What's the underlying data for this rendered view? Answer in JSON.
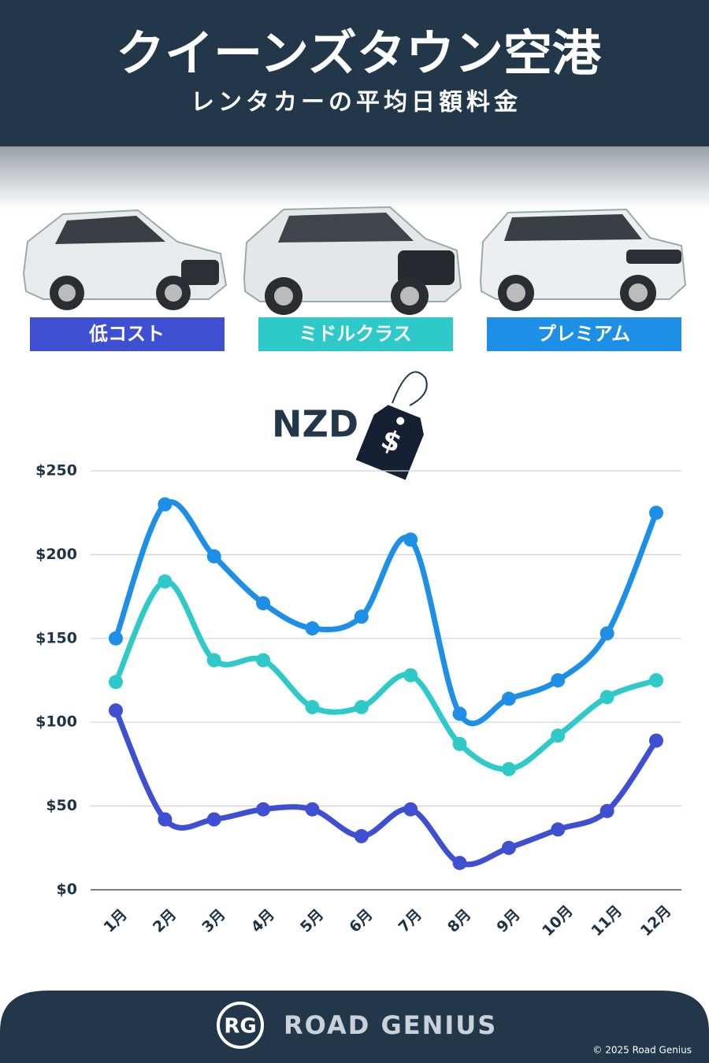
{
  "header": {
    "title": "クイーンズタウン空港",
    "subtitle": "レンタカーの平均日額料金"
  },
  "chart_data": {
    "type": "line",
    "currency": "NZD",
    "tag_symbol": "$",
    "categories": [
      "1月",
      "2月",
      "3月",
      "4月",
      "5月",
      "6月",
      "7月",
      "8月",
      "9月",
      "10月",
      "11月",
      "12月"
    ],
    "series": [
      {
        "name": "低コスト",
        "color": "#3f4fd1",
        "values": [
          107,
          42,
          42,
          48,
          48,
          32,
          48,
          16,
          25,
          36,
          47,
          89
        ]
      },
      {
        "name": "ミドルクラス",
        "color": "#2ec9c9",
        "values": [
          124,
          184,
          137,
          137,
          109,
          109,
          128,
          87,
          72,
          92,
          115,
          125
        ]
      },
      {
        "name": "プレミアム",
        "color": "#1e8fe6",
        "values": [
          150,
          230,
          199,
          171,
          156,
          163,
          209,
          105,
          114,
          125,
          153,
          225
        ]
      }
    ],
    "ylim": [
      0,
      250
    ],
    "yticks": [
      {
        "value": 0,
        "label": "$0"
      },
      {
        "value": 50,
        "label": "$50"
      },
      {
        "value": 100,
        "label": "$100"
      },
      {
        "value": 150,
        "label": "$150"
      },
      {
        "value": 200,
        "label": "$200"
      },
      {
        "value": 250,
        "label": "$250"
      }
    ],
    "grid": true
  },
  "footer": {
    "logo": "RG",
    "brand": "ROAD GENIUS",
    "copyright": "© 2025 Road Genius"
  }
}
